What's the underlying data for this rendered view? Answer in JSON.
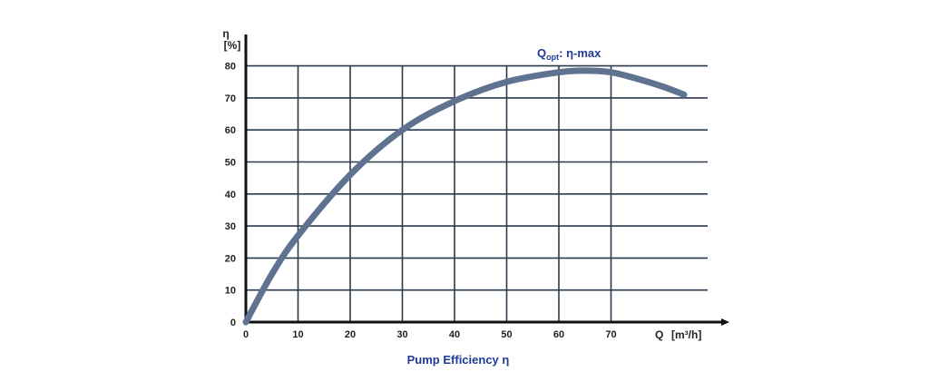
{
  "chart_data": {
    "type": "line",
    "title": "Pump Efficiency η",
    "xlabel": "Q",
    "xunit": "[m³/h]",
    "ylabel": "η",
    "yunit": "[%]",
    "xlim": [
      0,
      88
    ],
    "ylim": [
      0,
      80
    ],
    "xticks": [
      0,
      10,
      20,
      30,
      40,
      50,
      60,
      70
    ],
    "yticks": [
      0,
      10,
      20,
      30,
      40,
      50,
      60,
      70,
      80
    ],
    "grid": true,
    "annotation": {
      "text_main": "Q",
      "text_sub": "opt",
      "text_rest": ": η-max"
    },
    "series": [
      {
        "values": [
          {
            "x": 0,
            "y": 0
          },
          {
            "x": 5,
            "y": 15
          },
          {
            "x": 10,
            "y": 27
          },
          {
            "x": 20,
            "y": 46
          },
          {
            "x": 30,
            "y": 60
          },
          {
            "x": 40,
            "y": 69
          },
          {
            "x": 50,
            "y": 75
          },
          {
            "x": 60,
            "y": 78
          },
          {
            "x": 65,
            "y": 78.5
          },
          {
            "x": 70,
            "y": 78
          },
          {
            "x": 75,
            "y": 76
          },
          {
            "x": 80,
            "y": 73.5
          },
          {
            "x": 84,
            "y": 71
          }
        ]
      }
    ],
    "colors": {
      "curve": "#5f7391",
      "grid": "#2b3a4a",
      "axis": "#111111",
      "title": "#1f3a93"
    }
  }
}
